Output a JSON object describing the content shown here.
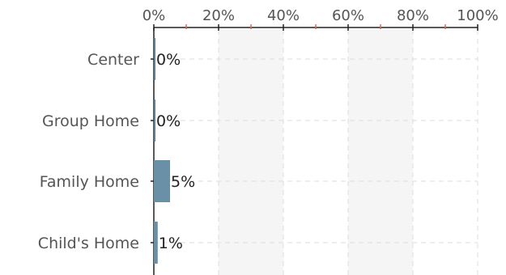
{
  "chart_data": {
    "type": "bar",
    "orientation": "horizontal",
    "categories": [
      "Center",
      "Group Home",
      "Family Home",
      "Child's Home"
    ],
    "values": [
      0.4,
      0.4,
      5,
      1.2
    ],
    "data_labels": [
      "0%",
      "0%",
      "5%",
      "1%"
    ],
    "x_ticks": [
      "0%",
      "20%",
      "40%",
      "60%",
      "80%",
      "100%"
    ],
    "xlim": [
      0,
      100
    ],
    "x_axis_position": "top",
    "grid": true,
    "alternating_bands": true,
    "title": "",
    "xlabel": "",
    "ylabel": "",
    "colors": {
      "bar": "#6a90a8",
      "bar_thin": "#5f7f97",
      "axis": "#222222",
      "minor_tick": "#e06a4a",
      "band": "#f5f5f5",
      "grid": "#dddddd"
    }
  }
}
